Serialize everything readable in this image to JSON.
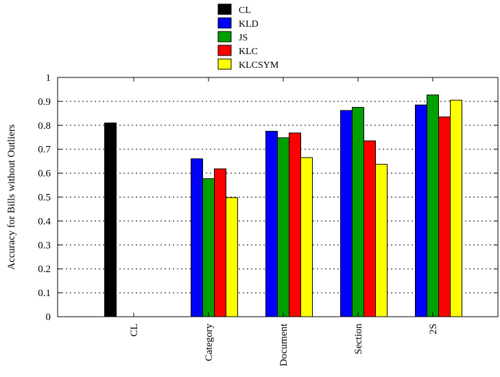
{
  "chart_data": {
    "type": "bar",
    "categories": [
      "CL",
      "Category",
      "Document",
      "Section",
      "2S"
    ],
    "series": [
      {
        "name": "CL",
        "color": "#000000",
        "values": [
          0.81,
          0,
          0,
          0,
          0
        ]
      },
      {
        "name": "KLD",
        "color": "#0000ff",
        "values": [
          0,
          0.66,
          0.775,
          0.862,
          0.885
        ]
      },
      {
        "name": "JS",
        "color": "#00a000",
        "values": [
          0,
          0.577,
          0.748,
          0.875,
          0.927
        ]
      },
      {
        "name": "KLC",
        "color": "#ff0000",
        "values": [
          0,
          0.618,
          0.768,
          0.735,
          0.835
        ]
      },
      {
        "name": "KLCSYM",
        "color": "#ffff00",
        "values": [
          0,
          0.498,
          0.665,
          0.637,
          0.905
        ]
      }
    ],
    "title": "",
    "xlabel": "",
    "ylabel": "Accuracy for Bills without Outliers",
    "ylim": [
      0,
      1
    ],
    "yticks": [
      "0",
      "0.1",
      "0.2",
      "0.3",
      "0.4",
      "0.5",
      "0.6",
      "0.7",
      "0.8",
      "0.9",
      "1"
    ],
    "grid": "horizontal dotted",
    "legend_position": "top-center"
  }
}
